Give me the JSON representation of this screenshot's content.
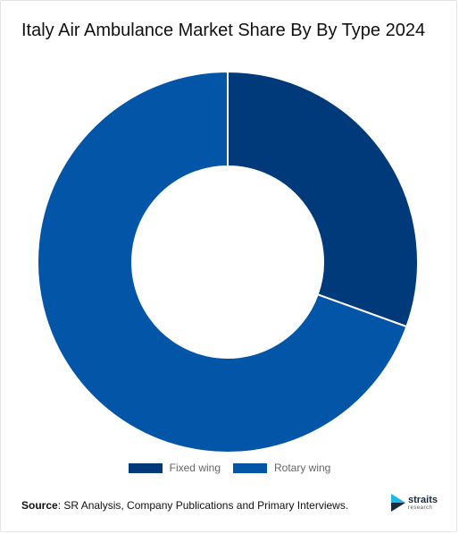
{
  "title": "Italy Air Ambulance Market Share By By Type 2024",
  "chart_data": {
    "type": "pie",
    "donut": true,
    "categories": [
      "Fixed wing",
      "Rotary wing"
    ],
    "values": [
      30.5,
      69.5
    ],
    "colors": [
      "#013a7b",
      "#0355a8"
    ],
    "legend": "bottom"
  },
  "source": {
    "label": "Source",
    "text": ": SR Analysis, Company Publications and Primary Interviews."
  },
  "logo": {
    "name": "straits",
    "sub": "research",
    "colors": [
      "#1fb7e8",
      "#1a2a3a"
    ]
  }
}
